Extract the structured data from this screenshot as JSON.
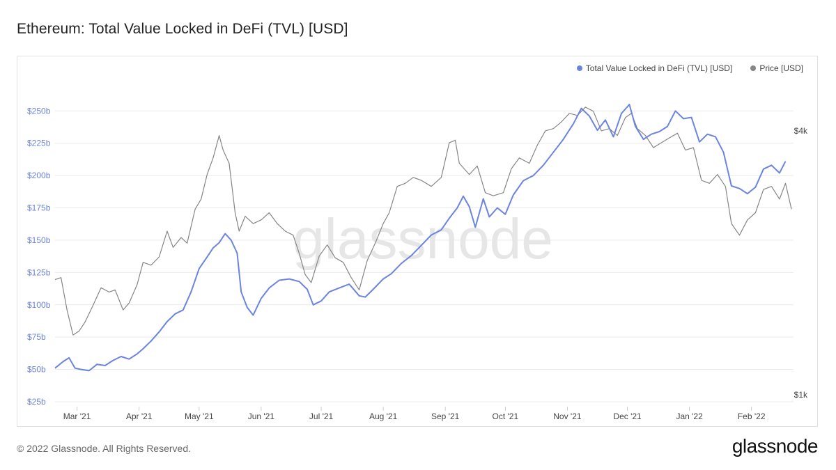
{
  "header": {
    "title": "Ethereum: Total Value Locked in DeFi (TVL) [USD]"
  },
  "footer": {
    "copyright": "© 2022 Glassnode. All Rights Reserved.",
    "logo": "glassnode"
  },
  "watermark": "glassnode",
  "chart_data": {
    "type": "line",
    "title": "Ethereum: Total Value Locked in DeFi (TVL) [USD]",
    "legend_position": "top-right",
    "grid": true,
    "x_ticks": [
      "Mar '21",
      "Apr '21",
      "May '21",
      "Jun '21",
      "Jul '21",
      "Aug '21",
      "Sep '21",
      "Oct '21",
      "Nov '21",
      "Dec '21",
      "Jan '22",
      "Feb '22"
    ],
    "x_tick_dates": [
      "2021-03-01",
      "2021-04-01",
      "2021-05-01",
      "2021-06-01",
      "2021-07-01",
      "2021-08-01",
      "2021-09-01",
      "2021-10-01",
      "2021-11-01",
      "2021-12-01",
      "2022-01-01",
      "2022-02-01"
    ],
    "xlim": [
      "2021-02-18",
      "2022-02-22"
    ],
    "y_left": {
      "ylim": [
        25,
        262
      ],
      "ticks": [
        25,
        50,
        75,
        100,
        125,
        150,
        175,
        200,
        225,
        250
      ],
      "tick_labels": [
        "$25b",
        "$50b",
        "$75b",
        "$100b",
        "$125b",
        "$150b",
        "$175b",
        "$200b",
        "$225b",
        "$250b"
      ]
    },
    "y_right": {
      "scale": "log",
      "ylim": [
        1000,
        5000
      ],
      "ticks": [
        1000,
        4000
      ],
      "tick_labels": [
        "$1k",
        "$4k"
      ]
    },
    "series": [
      {
        "name": "Total Value Locked in DeFi (TVL) [USD]",
        "color": "#6a84e0",
        "axis": "left",
        "points": [
          [
            "2021-02-18",
            51
          ],
          [
            "2021-02-22",
            56
          ],
          [
            "2021-02-25",
            59
          ],
          [
            "2021-02-28",
            51
          ],
          [
            "2021-03-03",
            50
          ],
          [
            "2021-03-07",
            49
          ],
          [
            "2021-03-11",
            54
          ],
          [
            "2021-03-15",
            53
          ],
          [
            "2021-03-19",
            57
          ],
          [
            "2021-03-23",
            60
          ],
          [
            "2021-03-27",
            58
          ],
          [
            "2021-03-31",
            62
          ],
          [
            "2021-04-03",
            66
          ],
          [
            "2021-04-07",
            72
          ],
          [
            "2021-04-11",
            79
          ],
          [
            "2021-04-15",
            87
          ],
          [
            "2021-04-19",
            93
          ],
          [
            "2021-04-23",
            96
          ],
          [
            "2021-04-27",
            110
          ],
          [
            "2021-05-01",
            128
          ],
          [
            "2021-05-05",
            137
          ],
          [
            "2021-05-08",
            144
          ],
          [
            "2021-05-11",
            148
          ],
          [
            "2021-05-14",
            155
          ],
          [
            "2021-05-17",
            150
          ],
          [
            "2021-05-20",
            140
          ],
          [
            "2021-05-22",
            110
          ],
          [
            "2021-05-25",
            98
          ],
          [
            "2021-05-28",
            92
          ],
          [
            "2021-06-01",
            105
          ],
          [
            "2021-06-05",
            113
          ],
          [
            "2021-06-10",
            119
          ],
          [
            "2021-06-15",
            120
          ],
          [
            "2021-06-20",
            118
          ],
          [
            "2021-06-24",
            112
          ],
          [
            "2021-06-27",
            100
          ],
          [
            "2021-07-01",
            103
          ],
          [
            "2021-07-05",
            110
          ],
          [
            "2021-07-10",
            113
          ],
          [
            "2021-07-15",
            116
          ],
          [
            "2021-07-20",
            107
          ],
          [
            "2021-07-23",
            106
          ],
          [
            "2021-07-27",
            112
          ],
          [
            "2021-08-01",
            120
          ],
          [
            "2021-08-05",
            124
          ],
          [
            "2021-08-10",
            132
          ],
          [
            "2021-08-15",
            138
          ],
          [
            "2021-08-20",
            146
          ],
          [
            "2021-08-25",
            154
          ],
          [
            "2021-08-30",
            158
          ],
          [
            "2021-09-03",
            167
          ],
          [
            "2021-09-07",
            175
          ],
          [
            "2021-09-10",
            184
          ],
          [
            "2021-09-13",
            176
          ],
          [
            "2021-09-16",
            160
          ],
          [
            "2021-09-20",
            182
          ],
          [
            "2021-09-23",
            168
          ],
          [
            "2021-09-27",
            175
          ],
          [
            "2021-10-01",
            170
          ],
          [
            "2021-10-05",
            185
          ],
          [
            "2021-10-10",
            196
          ],
          [
            "2021-10-15",
            200
          ],
          [
            "2021-10-20",
            208
          ],
          [
            "2021-10-25",
            218
          ],
          [
            "2021-10-30",
            228
          ],
          [
            "2021-11-04",
            240
          ],
          [
            "2021-11-08",
            252
          ],
          [
            "2021-11-12",
            246
          ],
          [
            "2021-11-16",
            235
          ],
          [
            "2021-11-20",
            243
          ],
          [
            "2021-11-24",
            230
          ],
          [
            "2021-11-28",
            248
          ],
          [
            "2021-12-02",
            255
          ],
          [
            "2021-12-05",
            238
          ],
          [
            "2021-12-09",
            228
          ],
          [
            "2021-12-13",
            232
          ],
          [
            "2021-12-17",
            234
          ],
          [
            "2021-12-21",
            238
          ],
          [
            "2021-12-25",
            250
          ],
          [
            "2021-12-29",
            244
          ],
          [
            "2022-01-02",
            245
          ],
          [
            "2022-01-06",
            226
          ],
          [
            "2022-01-10",
            232
          ],
          [
            "2022-01-14",
            230
          ],
          [
            "2022-01-18",
            218
          ],
          [
            "2022-01-22",
            192
          ],
          [
            "2022-01-26",
            190
          ],
          [
            "2022-01-30",
            186
          ],
          [
            "2022-02-03",
            191
          ],
          [
            "2022-02-07",
            205
          ],
          [
            "2022-02-11",
            208
          ],
          [
            "2022-02-15",
            202
          ],
          [
            "2022-02-18",
            211
          ]
        ]
      },
      {
        "name": "Price [USD]",
        "color": "#858585",
        "axis": "right",
        "points": [
          [
            "2021-02-18",
            1900
          ],
          [
            "2021-02-21",
            1920
          ],
          [
            "2021-02-24",
            1620
          ],
          [
            "2021-02-27",
            1420
          ],
          [
            "2021-03-02",
            1450
          ],
          [
            "2021-03-05",
            1520
          ],
          [
            "2021-03-09",
            1660
          ],
          [
            "2021-03-13",
            1820
          ],
          [
            "2021-03-17",
            1780
          ],
          [
            "2021-03-20",
            1800
          ],
          [
            "2021-03-24",
            1620
          ],
          [
            "2021-03-27",
            1680
          ],
          [
            "2021-03-31",
            1850
          ],
          [
            "2021-04-03",
            2080
          ],
          [
            "2021-04-07",
            2050
          ],
          [
            "2021-04-11",
            2140
          ],
          [
            "2021-04-15",
            2450
          ],
          [
            "2021-04-18",
            2250
          ],
          [
            "2021-04-22",
            2370
          ],
          [
            "2021-04-25",
            2300
          ],
          [
            "2021-04-29",
            2750
          ],
          [
            "2021-05-02",
            2900
          ],
          [
            "2021-05-05",
            3300
          ],
          [
            "2021-05-08",
            3600
          ],
          [
            "2021-05-11",
            4050
          ],
          [
            "2021-05-13",
            3750
          ],
          [
            "2021-05-16",
            3500
          ],
          [
            "2021-05-19",
            2700
          ],
          [
            "2021-05-21",
            2450
          ],
          [
            "2021-05-24",
            2650
          ],
          [
            "2021-05-28",
            2550
          ],
          [
            "2021-06-01",
            2600
          ],
          [
            "2021-06-05",
            2700
          ],
          [
            "2021-06-09",
            2550
          ],
          [
            "2021-06-13",
            2450
          ],
          [
            "2021-06-17",
            2400
          ],
          [
            "2021-06-20",
            2180
          ],
          [
            "2021-06-23",
            1950
          ],
          [
            "2021-06-26",
            1870
          ],
          [
            "2021-06-30",
            2150
          ],
          [
            "2021-07-04",
            2280
          ],
          [
            "2021-07-08",
            2130
          ],
          [
            "2021-07-12",
            2080
          ],
          [
            "2021-07-16",
            1920
          ],
          [
            "2021-07-20",
            1800
          ],
          [
            "2021-07-24",
            2100
          ],
          [
            "2021-07-28",
            2300
          ],
          [
            "2021-08-01",
            2550
          ],
          [
            "2021-08-04",
            2700
          ],
          [
            "2021-08-08",
            3100
          ],
          [
            "2021-08-12",
            3150
          ],
          [
            "2021-08-16",
            3250
          ],
          [
            "2021-08-20",
            3200
          ],
          [
            "2021-08-25",
            3100
          ],
          [
            "2021-08-30",
            3250
          ],
          [
            "2021-09-03",
            3900
          ],
          [
            "2021-09-06",
            3950
          ],
          [
            "2021-09-08",
            3500
          ],
          [
            "2021-09-13",
            3300
          ],
          [
            "2021-09-17",
            3450
          ],
          [
            "2021-09-21",
            3000
          ],
          [
            "2021-09-25",
            2950
          ],
          [
            "2021-09-30",
            3000
          ],
          [
            "2021-10-04",
            3400
          ],
          [
            "2021-10-08",
            3600
          ],
          [
            "2021-10-13",
            3500
          ],
          [
            "2021-10-17",
            3850
          ],
          [
            "2021-10-21",
            4150
          ],
          [
            "2021-10-25",
            4200
          ],
          [
            "2021-10-29",
            4350
          ],
          [
            "2021-11-02",
            4550
          ],
          [
            "2021-11-06",
            4500
          ],
          [
            "2021-11-10",
            4700
          ],
          [
            "2021-11-14",
            4600
          ],
          [
            "2021-11-18",
            4150
          ],
          [
            "2021-11-22",
            4200
          ],
          [
            "2021-11-26",
            4050
          ],
          [
            "2021-11-30",
            4450
          ],
          [
            "2021-12-03",
            4550
          ],
          [
            "2021-12-06",
            4200
          ],
          [
            "2021-12-10",
            4050
          ],
          [
            "2021-12-14",
            3800
          ],
          [
            "2021-12-18",
            3900
          ],
          [
            "2021-12-22",
            4000
          ],
          [
            "2021-12-26",
            4100
          ],
          [
            "2021-12-30",
            3750
          ],
          [
            "2022-01-03",
            3800
          ],
          [
            "2022-01-07",
            3200
          ],
          [
            "2022-01-11",
            3150
          ],
          [
            "2022-01-15",
            3300
          ],
          [
            "2022-01-19",
            3100
          ],
          [
            "2022-01-22",
            2550
          ],
          [
            "2022-01-26",
            2400
          ],
          [
            "2022-01-30",
            2600
          ],
          [
            "2022-02-03",
            2700
          ],
          [
            "2022-02-07",
            3050
          ],
          [
            "2022-02-11",
            3100
          ],
          [
            "2022-02-15",
            2900
          ],
          [
            "2022-02-18",
            3150
          ],
          [
            "2022-02-21",
            2750
          ]
        ]
      }
    ]
  }
}
